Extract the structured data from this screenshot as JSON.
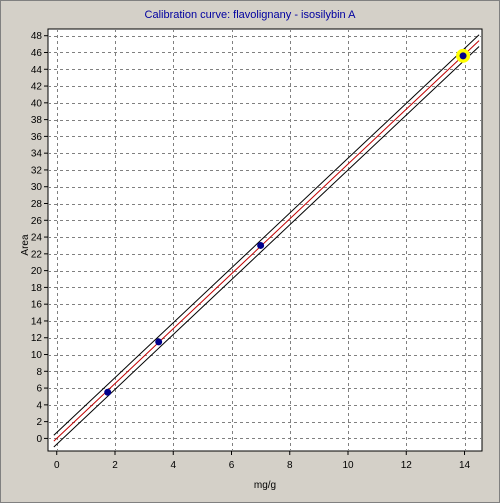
{
  "window": {
    "title": "Calibration curve: flavolignany - isosilybin A"
  },
  "chart_data": {
    "type": "scatter",
    "title": "Calibration curve: flavolignany - isosilybin A",
    "xlabel": "mg/g",
    "ylabel": "Area",
    "xlim": [
      -0.3,
      14.6
    ],
    "ylim": [
      -1.5,
      48.8
    ],
    "x_ticks": [
      0,
      2,
      4,
      6,
      8,
      10,
      12,
      14
    ],
    "y_ticks": [
      0,
      2,
      4,
      6,
      8,
      10,
      12,
      14,
      16,
      18,
      20,
      22,
      24,
      26,
      28,
      30,
      32,
      34,
      36,
      38,
      40,
      42,
      44,
      46,
      48
    ],
    "grid": true,
    "points": [
      {
        "x": 1.75,
        "y": 5.5
      },
      {
        "x": 3.5,
        "y": 11.5
      },
      {
        "x": 7.0,
        "y": 23.0
      },
      {
        "x": 13.95,
        "y": 45.6
      }
    ],
    "highlighted_point_index": 3,
    "fit_line": {
      "slope": 3.27,
      "intercept": 0.0,
      "x_range": [
        -0.1,
        14.5
      ]
    },
    "confidence_band": {
      "offset": 0.7
    },
    "colors": {
      "point": "#00008b",
      "highlight": "#ffff00",
      "fit": "#c00000",
      "band": "#000000",
      "grid": "#808080",
      "title": "#0000a0"
    }
  }
}
